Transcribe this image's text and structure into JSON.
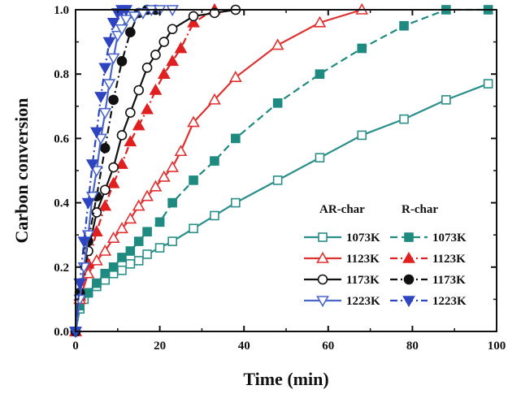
{
  "chart_data": {
    "type": "line",
    "xlabel": "Time (min)",
    "ylabel": "Carbon conversion",
    "xlim": [
      0,
      100
    ],
    "ylim": [
      0,
      1.0
    ],
    "xticks": [
      0,
      20,
      40,
      60,
      80,
      100
    ],
    "yticks": [
      0.0,
      0.2,
      0.4,
      0.6,
      0.8,
      1.0
    ],
    "ytick_labels": [
      "0.0",
      "0.2",
      "0.4",
      "0.6",
      "0.8",
      "1.0"
    ],
    "grid": false,
    "legend": {
      "placement": "bottom-right",
      "group_titles": [
        "AR-char",
        "R-char"
      ]
    },
    "series": [
      {
        "name": "1073K",
        "group": "AR-char",
        "color": "#2a8f8a",
        "marker": "square",
        "filled": false,
        "dash": "solid",
        "x": [
          0,
          1,
          2,
          3,
          5,
          7,
          9,
          11,
          13,
          15,
          17,
          20,
          23,
          28,
          33,
          38,
          48,
          58,
          68,
          78,
          88,
          98
        ],
        "y": [
          0.0,
          0.07,
          0.1,
          0.12,
          0.14,
          0.16,
          0.18,
          0.19,
          0.21,
          0.22,
          0.24,
          0.26,
          0.28,
          0.32,
          0.36,
          0.4,
          0.47,
          0.54,
          0.61,
          0.66,
          0.72,
          0.77
        ]
      },
      {
        "name": "1073K",
        "group": "R-char",
        "color": "#1e8a80",
        "marker": "square",
        "filled": true,
        "dash": "dash",
        "x": [
          0,
          1,
          3,
          5,
          7,
          9,
          11,
          13,
          15,
          17,
          20,
          23,
          28,
          33,
          38,
          48,
          58,
          68,
          78,
          88,
          98
        ],
        "y": [
          0.0,
          0.08,
          0.12,
          0.15,
          0.18,
          0.2,
          0.23,
          0.25,
          0.28,
          0.31,
          0.34,
          0.4,
          0.47,
          0.53,
          0.6,
          0.71,
          0.8,
          0.88,
          0.95,
          1.0,
          1.0
        ]
      },
      {
        "name": "1123K",
        "group": "AR-char",
        "color": "#e03030",
        "marker": "triangle-up",
        "filled": false,
        "dash": "solid",
        "x": [
          0,
          1,
          3,
          5,
          7,
          9,
          11,
          13,
          15,
          17,
          19,
          21,
          23,
          25,
          28,
          33,
          38,
          48,
          58,
          68
        ],
        "y": [
          0.0,
          0.1,
          0.18,
          0.22,
          0.25,
          0.29,
          0.32,
          0.35,
          0.39,
          0.42,
          0.45,
          0.48,
          0.51,
          0.56,
          0.65,
          0.72,
          0.79,
          0.89,
          0.96,
          1.0
        ]
      },
      {
        "name": "1123K",
        "group": "R-char",
        "color": "#e02020",
        "marker": "triangle-up",
        "filled": true,
        "dash": "dashdot",
        "x": [
          0,
          1,
          3,
          5,
          7,
          9,
          11,
          13,
          15,
          17,
          19,
          21,
          23,
          25,
          28,
          33
        ],
        "y": [
          0.0,
          0.11,
          0.21,
          0.31,
          0.39,
          0.46,
          0.52,
          0.59,
          0.64,
          0.69,
          0.75,
          0.8,
          0.84,
          0.88,
          0.96,
          1.0
        ]
      },
      {
        "name": "1173K",
        "group": "AR-char",
        "color": "#111111",
        "marker": "circle",
        "filled": false,
        "dash": "solid",
        "x": [
          0,
          1,
          3,
          5,
          7,
          9,
          11,
          13,
          15,
          17,
          19,
          21,
          23,
          28,
          33,
          38
        ],
        "y": [
          0.0,
          0.12,
          0.25,
          0.37,
          0.44,
          0.51,
          0.61,
          0.68,
          0.75,
          0.82,
          0.86,
          0.9,
          0.94,
          0.98,
          0.99,
          1.0
        ]
      },
      {
        "name": "1173K",
        "group": "R-char",
        "color": "#111111",
        "marker": "circle",
        "filled": true,
        "dash": "dashdot",
        "x": [
          0,
          1,
          3,
          5,
          7,
          9,
          11,
          13,
          15,
          17,
          19
        ],
        "y": [
          0.0,
          0.12,
          0.28,
          0.42,
          0.57,
          0.72,
          0.84,
          0.93,
          0.99,
          1.0,
          1.0
        ]
      },
      {
        "name": "1223K",
        "group": "AR-char",
        "color": "#4a66c8",
        "marker": "triangle-down",
        "filled": false,
        "dash": "solid",
        "x": [
          0,
          1,
          2,
          3,
          4,
          5,
          6,
          7,
          8,
          9,
          10,
          11,
          12,
          14,
          16,
          18,
          20,
          23
        ],
        "y": [
          0.0,
          0.1,
          0.2,
          0.3,
          0.42,
          0.5,
          0.6,
          0.68,
          0.77,
          0.85,
          0.92,
          0.94,
          0.97,
          0.98,
          0.99,
          1.0,
          1.0,
          1.0
        ]
      },
      {
        "name": "1223K",
        "group": "R-char",
        "color": "#2e44c0",
        "marker": "triangle-down",
        "filled": true,
        "dash": "dashdot",
        "x": [
          0,
          1,
          2,
          3,
          4,
          5,
          6,
          7,
          8,
          9,
          10,
          11,
          12
        ],
        "y": [
          0.0,
          0.15,
          0.28,
          0.4,
          0.52,
          0.62,
          0.73,
          0.82,
          0.9,
          0.96,
          0.99,
          1.0,
          1.0
        ]
      }
    ]
  }
}
